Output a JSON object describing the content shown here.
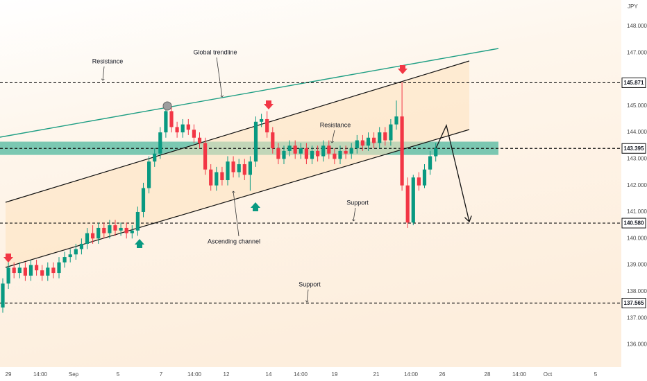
{
  "chart_data": {
    "type": "candlestick",
    "currency": "JPY",
    "x_labels": [
      "29",
      "14:00",
      "Sep",
      "5",
      "7",
      "14:00",
      "12",
      "14",
      "14:00",
      "19",
      "21",
      "14:00",
      "26",
      "28",
      "14:00",
      "Oct",
      "5"
    ],
    "open": [
      137.4,
      138.3,
      138.9,
      138.7,
      138.9,
      138.6,
      139.0,
      138.8,
      138.6,
      138.9,
      138.7,
      139.1,
      139.3,
      139.4,
      139.6,
      139.8,
      140.2,
      140.0,
      140.4,
      140.2,
      140.5,
      140.3,
      140.4,
      140.2,
      140.3,
      141.0,
      141.9,
      142.9,
      143.2,
      144.0,
      144.8,
      144.2,
      144.0,
      144.3,
      144.1,
      143.8,
      143.6,
      142.6,
      142.0,
      142.5,
      142.2,
      142.9,
      142.5,
      142.8,
      142.4,
      142.9,
      144.4,
      144.5,
      144.0,
      143.4,
      143.0,
      143.3,
      143.5,
      143.2,
      143.4,
      143.0,
      143.3,
      143.1,
      143.5,
      143.2,
      143.0,
      143.3,
      143.2,
      143.4,
      143.7,
      143.5,
      143.8,
      143.6,
      144.0,
      143.7,
      144.3,
      144.6,
      142.0,
      140.6,
      142.3,
      142.0,
      142.6,
      143.1
    ],
    "high": [
      138.5,
      139.1,
      139.1,
      139.1,
      139.1,
      139.2,
      139.2,
      139.0,
      139.1,
      139.1,
      139.3,
      139.5,
      139.6,
      139.8,
      140.0,
      140.4,
      140.5,
      140.6,
      140.6,
      140.7,
      140.7,
      140.6,
      140.6,
      140.5,
      141.2,
      142.1,
      143.1,
      143.4,
      144.2,
      145.0,
      145.0,
      144.4,
      144.5,
      144.5,
      144.3,
      144.0,
      143.8,
      142.8,
      142.7,
      142.7,
      143.1,
      143.1,
      143.0,
      143.0,
      143.1,
      144.6,
      144.7,
      144.8,
      144.2,
      143.6,
      143.5,
      143.7,
      143.7,
      143.6,
      143.6,
      143.5,
      143.5,
      143.7,
      143.7,
      143.4,
      143.5,
      143.5,
      143.6,
      143.9,
      143.9,
      144.0,
      144.0,
      144.2,
      144.2,
      144.5,
      145.2,
      145.9,
      142.3,
      142.4,
      142.5,
      142.8,
      143.3,
      143.6
    ],
    "low": [
      137.2,
      138.1,
      138.5,
      138.5,
      138.4,
      138.4,
      138.6,
      138.4,
      138.4,
      138.5,
      138.5,
      138.9,
      139.1,
      139.2,
      139.4,
      139.6,
      139.8,
      139.8,
      140.0,
      140.0,
      140.1,
      140.1,
      140.0,
      140.0,
      140.1,
      140.8,
      141.7,
      142.7,
      143.0,
      143.8,
      144.0,
      143.8,
      143.8,
      143.9,
      143.6,
      143.4,
      142.4,
      141.8,
      141.8,
      142.0,
      142.0,
      142.3,
      142.3,
      142.2,
      141.8,
      142.7,
      144.2,
      143.8,
      143.2,
      142.8,
      142.8,
      143.1,
      143.0,
      143.0,
      142.8,
      142.8,
      142.9,
      142.9,
      143.0,
      142.8,
      142.8,
      143.0,
      143.0,
      143.2,
      143.3,
      143.3,
      143.4,
      143.4,
      143.5,
      143.5,
      144.1,
      141.8,
      140.4,
      140.5,
      141.8,
      141.9,
      142.4,
      142.9
    ],
    "close": [
      138.3,
      138.9,
      138.7,
      138.9,
      138.6,
      139.0,
      138.8,
      138.6,
      138.9,
      138.7,
      139.1,
      139.3,
      139.4,
      139.6,
      139.8,
      140.2,
      140.0,
      140.4,
      140.2,
      140.5,
      140.3,
      140.4,
      140.2,
      140.3,
      141.0,
      141.9,
      142.9,
      143.2,
      144.0,
      144.8,
      144.2,
      144.0,
      144.3,
      144.1,
      143.8,
      143.6,
      142.6,
      142.0,
      142.5,
      142.2,
      142.9,
      142.5,
      142.8,
      142.4,
      142.9,
      144.4,
      144.5,
      144.0,
      143.4,
      143.0,
      143.3,
      143.5,
      143.2,
      143.4,
      143.0,
      143.3,
      143.1,
      143.5,
      143.2,
      143.0,
      143.3,
      143.2,
      143.4,
      143.7,
      143.5,
      143.8,
      143.6,
      144.0,
      143.7,
      144.3,
      144.6,
      142.0,
      140.6,
      142.3,
      142.0,
      142.6,
      143.1,
      143.4
    ],
    "up_color": "#089981",
    "down_color": "#f23645",
    "ylim": [
      135.15,
      148.99
    ],
    "yticks": [
      {
        "value": 136,
        "label": "136.000"
      },
      {
        "value": 137,
        "label": "137.000"
      },
      {
        "value": 138,
        "label": "138.000"
      },
      {
        "value": 139,
        "label": "139.000"
      },
      {
        "value": 140,
        "label": "140.000"
      },
      {
        "value": 141,
        "label": "141.000"
      },
      {
        "value": 142,
        "label": "142.000"
      },
      {
        "value": 143,
        "label": "143.000"
      },
      {
        "value": 144,
        "label": "144.000"
      },
      {
        "value": 145,
        "label": "145.000"
      },
      {
        "value": 147,
        "label": "147.000"
      },
      {
        "value": 148,
        "label": "148.000"
      }
    ],
    "levels": [
      145.871,
      143.395,
      {
        "value": 140.58,
        "label": "140.580"
      },
      137.565
    ],
    "zone": [
      143.15,
      143.65
    ],
    "zone_color": "#4fb89f",
    "grid": false,
    "annotations": [
      "Resistance",
      "Global trendline",
      "Resistance",
      "Support",
      "Ascending channel",
      "Support"
    ]
  }
}
